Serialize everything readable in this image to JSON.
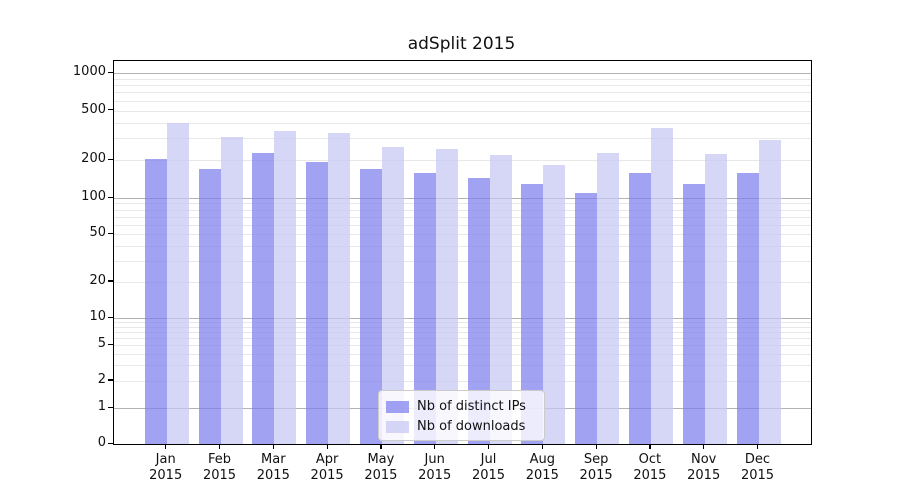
{
  "chart_data": {
    "type": "bar",
    "title": "adSplit 2015",
    "categories": [
      "Jan 2015",
      "Feb 2015",
      "Mar 2015",
      "Apr 2015",
      "May 2015",
      "Jun 2015",
      "Jul 2015",
      "Aug 2015",
      "Sep 2015",
      "Oct 2015",
      "Nov 2015",
      "Dec 2015"
    ],
    "series": [
      {
        "name": "Nb of distinct IPs",
        "color": "rgba(126,126,238,0.72)",
        "values": [
          205,
          170,
          230,
          195,
          170,
          160,
          145,
          130,
          110,
          160,
          130,
          160
        ]
      },
      {
        "name": "Nb of downloads",
        "color": "rgba(198,198,242,0.72)",
        "values": [
          400,
          310,
          345,
          330,
          255,
          245,
          220,
          185,
          230,
          365,
          225,
          290
        ]
      }
    ],
    "xlabel": "",
    "ylabel": "",
    "yscale": "symlog",
    "yticks": [
      0,
      1,
      2,
      5,
      10,
      20,
      50,
      100,
      200,
      500,
      1000
    ],
    "ylim": [
      0,
      1400
    ],
    "grid": true,
    "legend_position": "lower center",
    "colors": {
      "grid_major": "#b3b3b3",
      "grid_minor": "#e8e8e8",
      "axis": "#000000",
      "text": "#111111",
      "background": "#ffffff"
    }
  }
}
